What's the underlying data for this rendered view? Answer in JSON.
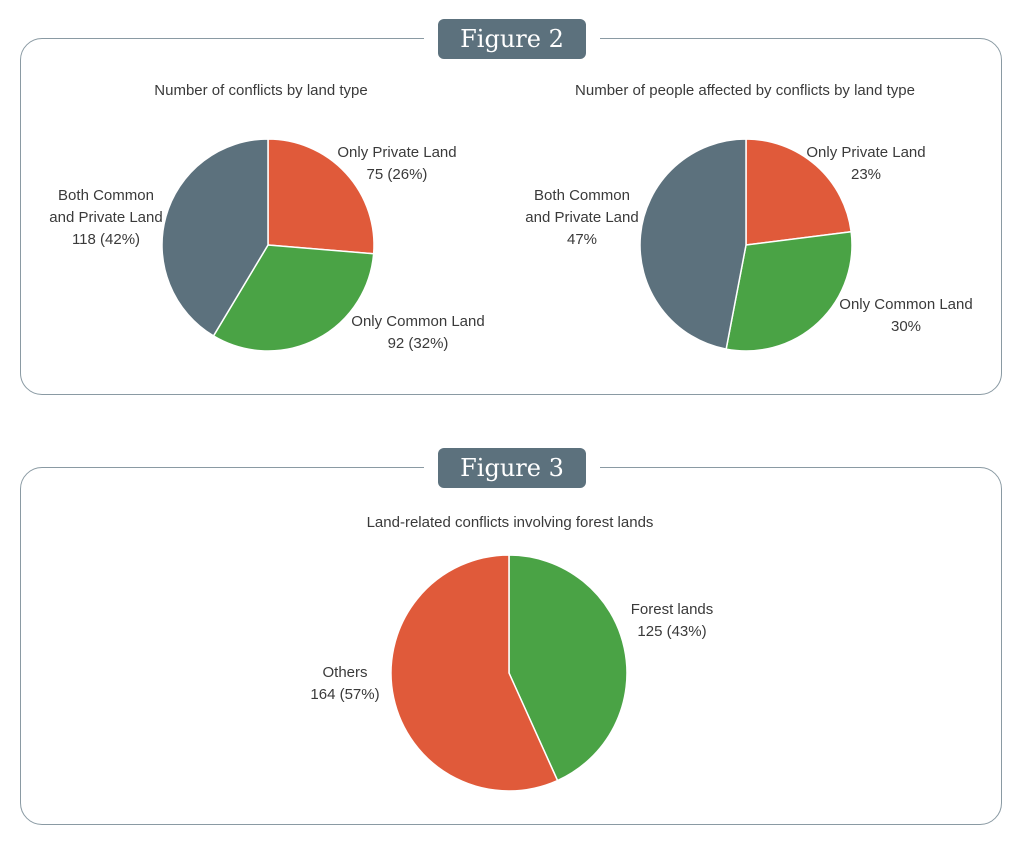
{
  "figures": [
    {
      "badge": "Figure 2"
    },
    {
      "badge": "Figure 3"
    }
  ],
  "chart_data": [
    {
      "type": "pie",
      "title": "Number of conflicts by land type",
      "slices": [
        {
          "name": "Only Private Land",
          "value": 75,
          "label": "75 (26%)",
          "color": "#e05a3a"
        },
        {
          "name": "Only Common Land",
          "value": 92,
          "label": "92 (32%)",
          "color": "#4aa345"
        },
        {
          "name": "Both Common and Private Land",
          "name_lines": [
            "Both Common",
            "and Private Land"
          ],
          "value": 118,
          "label": "118 (42%)",
          "color": "#5c717d"
        }
      ]
    },
    {
      "type": "pie",
      "title": "Number of people affected by conflicts by land type",
      "slices": [
        {
          "name": "Only Private Land",
          "value": 23,
          "label": "23%",
          "color": "#e05a3a"
        },
        {
          "name": "Only Common Land",
          "value": 30,
          "label": "30%",
          "color": "#4aa345"
        },
        {
          "name": "Both Common and Private Land",
          "name_lines": [
            "Both Common",
            "and Private Land"
          ],
          "value": 47,
          "label": "47%",
          "color": "#5c717d"
        }
      ]
    },
    {
      "type": "pie",
      "title": "Land-related conflicts involving forest lands",
      "slices": [
        {
          "name": "Forest lands",
          "value": 125,
          "label": "125 (43%)",
          "color": "#4aa345"
        },
        {
          "name": "Others",
          "value": 164,
          "label": "164 (57%)",
          "color": "#e05a3a"
        }
      ]
    }
  ]
}
